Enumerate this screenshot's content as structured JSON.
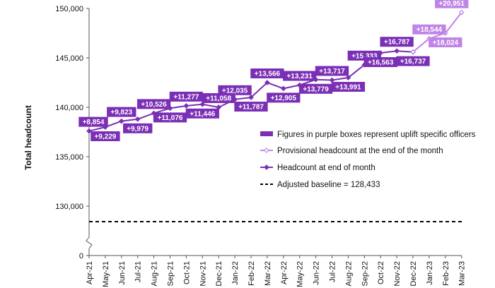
{
  "chart_data": {
    "type": "line",
    "ylabel": "Total headcount",
    "y_ticks": [
      "150,000",
      "145,000",
      "140,000",
      "135,000",
      "130,000",
      "0"
    ],
    "y_broken_axis": true,
    "categories": [
      "Apr-21",
      "May-21",
      "Jun-21",
      "Jul-21",
      "Aug-21",
      "Sep-21",
      "Oct-21",
      "Nov-21",
      "Dec-21",
      "Jan-22",
      "Feb-22",
      "Mar-22",
      "Apr-22",
      "May-22",
      "Jun-22",
      "Jul-22",
      "Aug-22",
      "Sep-22",
      "Oct-22",
      "Nov-22",
      "Dec-22",
      "Jan-23",
      "Feb-23",
      "Mar-23"
    ],
    "series": [
      {
        "name": "Headcount at end of month",
        "style": "solid-line-filled-diamond",
        "color": "#7b2fb5",
        "values": [
          137600,
          138000,
          138600,
          138800,
          139400,
          139900,
          140150,
          140300,
          140000,
          140800,
          141000,
          142500,
          141900,
          142250,
          142800,
          142750,
          143000,
          144300,
          145500,
          145700,
          145600,
          null,
          null,
          null
        ]
      },
      {
        "name": "Provisional headcount at the end of the month",
        "style": "solid-line-open-diamond",
        "color": "#c084e6",
        "values": [
          null,
          null,
          null,
          null,
          null,
          null,
          null,
          null,
          null,
          null,
          null,
          null,
          null,
          null,
          null,
          null,
          null,
          null,
          null,
          null,
          145600,
          146950,
          147500,
          149600
        ]
      }
    ],
    "baseline": {
      "label": "Adjusted baseline = 128,433",
      "value": 128433
    },
    "annotations": [
      {
        "i": 0,
        "text": "+8,854",
        "side": "above"
      },
      {
        "i": 1,
        "text": "+9,229",
        "side": "below"
      },
      {
        "i": 2,
        "text": "+9,823",
        "side": "above"
      },
      {
        "i": 3,
        "text": "+9,979",
        "side": "below"
      },
      {
        "i": 4,
        "text": "+10,526",
        "side": "above"
      },
      {
        "i": 5,
        "text": "+11,076",
        "side": "below"
      },
      {
        "i": 6,
        "text": "+11,277",
        "side": "above"
      },
      {
        "i": 7,
        "text": "+11,446",
        "side": "below"
      },
      {
        "i": 8,
        "text": "+11,058",
        "side": "above"
      },
      {
        "i": 9,
        "text": "+12,035",
        "side": "above"
      },
      {
        "i": 10,
        "text": "+11,787",
        "side": "below"
      },
      {
        "i": 11,
        "text": "+13,566",
        "side": "above"
      },
      {
        "i": 12,
        "text": "+12,905",
        "side": "below"
      },
      {
        "i": 13,
        "text": "+13,231",
        "side": "above"
      },
      {
        "i": 14,
        "text": "+13,779",
        "side": "below"
      },
      {
        "i": 15,
        "text": "+13,717",
        "side": "above"
      },
      {
        "i": 16,
        "text": "+13,991",
        "side": "below"
      },
      {
        "i": 17,
        "text": "+15,333",
        "side": "above"
      },
      {
        "i": 18,
        "text": "+16,563",
        "side": "below"
      },
      {
        "i": 19,
        "text": "+16,787",
        "side": "above"
      },
      {
        "i": 20,
        "text": "+16,737",
        "side": "below"
      },
      {
        "i": 21,
        "text": "+18,544",
        "side": "above",
        "provisional": true
      },
      {
        "i": 22,
        "text": "+18,024",
        "side": "below",
        "provisional": true
      },
      {
        "i": 23,
        "text": "+20,951",
        "side": "above",
        "provisional": true
      }
    ],
    "legend": [
      {
        "key": "box",
        "text": "Figures in purple boxes represent uplift specific officers"
      },
      {
        "key": "provisional",
        "text": "Provisional headcount at the end of the month"
      },
      {
        "key": "headcount",
        "text": "Headcount at end of month"
      },
      {
        "key": "baseline",
        "text": "Adjusted baseline = 128,433"
      }
    ],
    "legend_position": "right-middle",
    "grid": false,
    "colors": {
      "primary": "#7b2fb5",
      "provisional": "#c084e6",
      "baseline": "#000000"
    }
  }
}
